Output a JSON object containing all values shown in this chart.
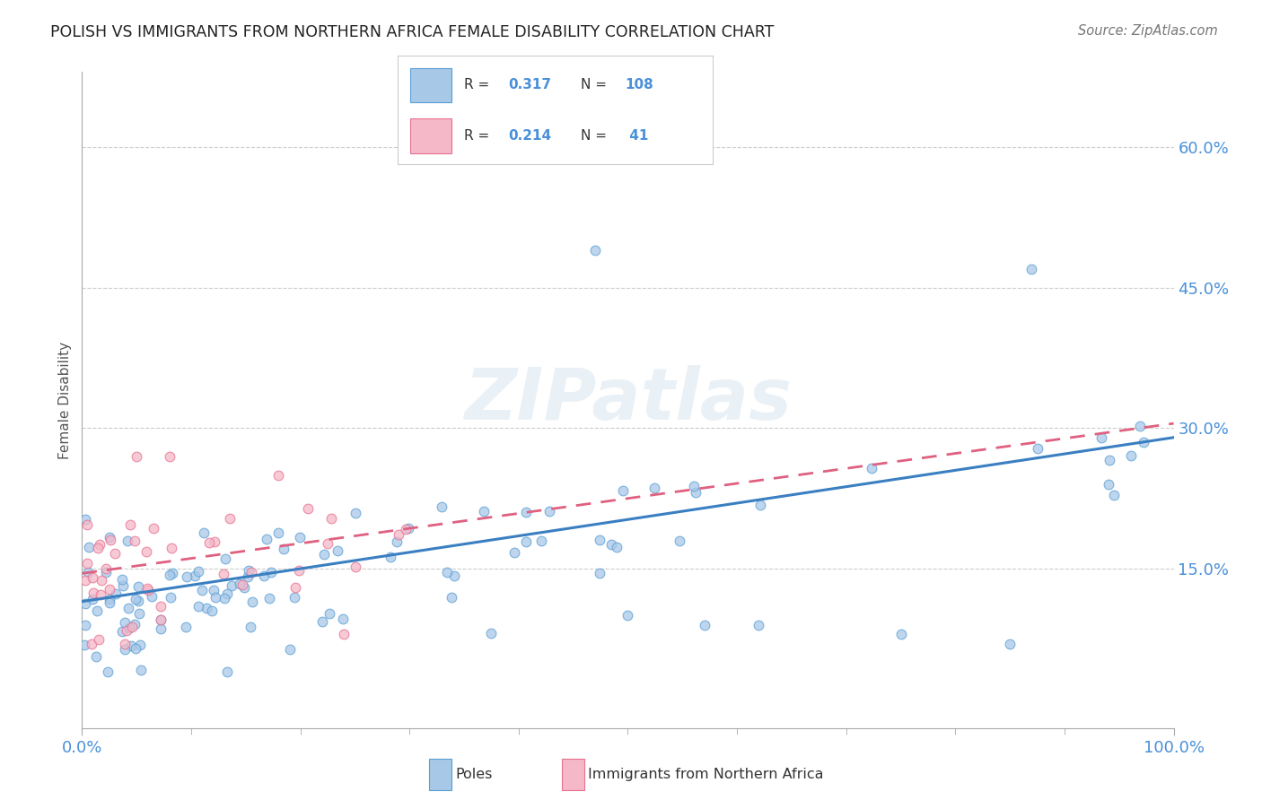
{
  "title": "POLISH VS IMMIGRANTS FROM NORTHERN AFRICA FEMALE DISABILITY CORRELATION CHART",
  "source": "Source: ZipAtlas.com",
  "ylabel": "Female Disability",
  "xlim": [
    0,
    1
  ],
  "ylim": [
    -0.02,
    0.68
  ],
  "yticks": [
    0.15,
    0.3,
    0.45,
    0.6
  ],
  "ytick_labels": [
    "15.0%",
    "30.0%",
    "45.0%",
    "60.0%"
  ],
  "xtick_labels": [
    "0.0%",
    "100.0%"
  ],
  "poles_color": "#a8c8e8",
  "immigrants_color": "#f4b8c8",
  "poles_edge_color": "#5a9fd4",
  "immigrants_edge_color": "#e87090",
  "trend_poles_color": "#3a7fc1",
  "trend_immigrants_color": "#e06080",
  "R_poles": 0.317,
  "N_poles": 108,
  "R_immigrants": 0.214,
  "N_immigrants": 41,
  "background_color": "#ffffff",
  "grid_color": "#cccccc",
  "title_color": "#222222",
  "axis_label_color": "#555555",
  "tick_color": "#4a90d9",
  "watermark": "ZIPatlas",
  "poles_trend_start_y": 0.115,
  "poles_trend_end_y": 0.29,
  "imm_trend_start_y": 0.145,
  "imm_trend_end_y": 0.305
}
